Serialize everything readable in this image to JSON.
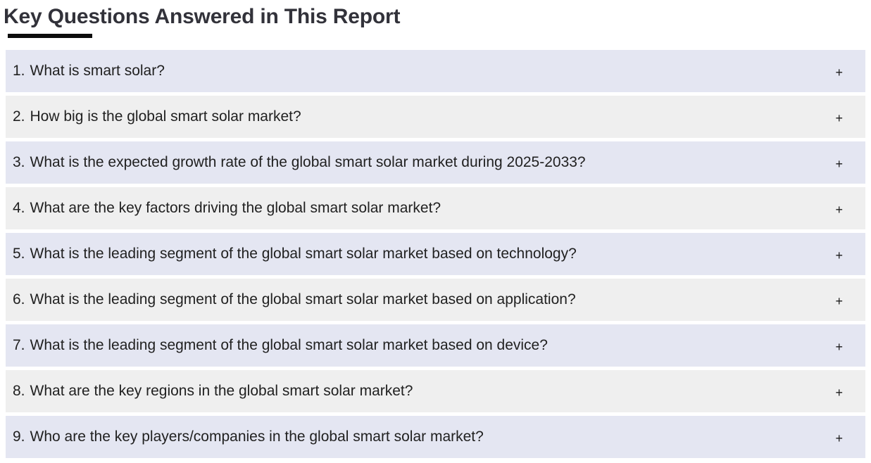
{
  "page_title": "Key Questions Answered in This Report",
  "faq": {
    "expand_icon": "+",
    "items": [
      {
        "number": "1.",
        "question": "What is smart solar?"
      },
      {
        "number": "2.",
        "question": "How big is the global smart solar market?"
      },
      {
        "number": "3.",
        "question": "What is the expected growth rate of the global smart solar market during 2025-2033?"
      },
      {
        "number": "4.",
        "question": "What are the key factors driving the global smart solar market?"
      },
      {
        "number": "5.",
        "question": "What is the leading segment of the global smart solar market based on technology?"
      },
      {
        "number": "6.",
        "question": "What is the leading segment of the global smart solar market based on application?"
      },
      {
        "number": "7.",
        "question": "What is the leading segment of the global smart solar market based on device?"
      },
      {
        "number": "8.",
        "question": "What are the key regions in the global smart solar market?"
      },
      {
        "number": "9.",
        "question": "Who are the key players/companies in the global smart solar market?"
      }
    ]
  },
  "colors": {
    "row_alt_bg": "#e4e6f2",
    "row_bg": "#efefef",
    "title_text": "#32323a",
    "question_text": "#212121",
    "underline": "#0d0d0d",
    "plus_icon": "#1a1a1a"
  }
}
